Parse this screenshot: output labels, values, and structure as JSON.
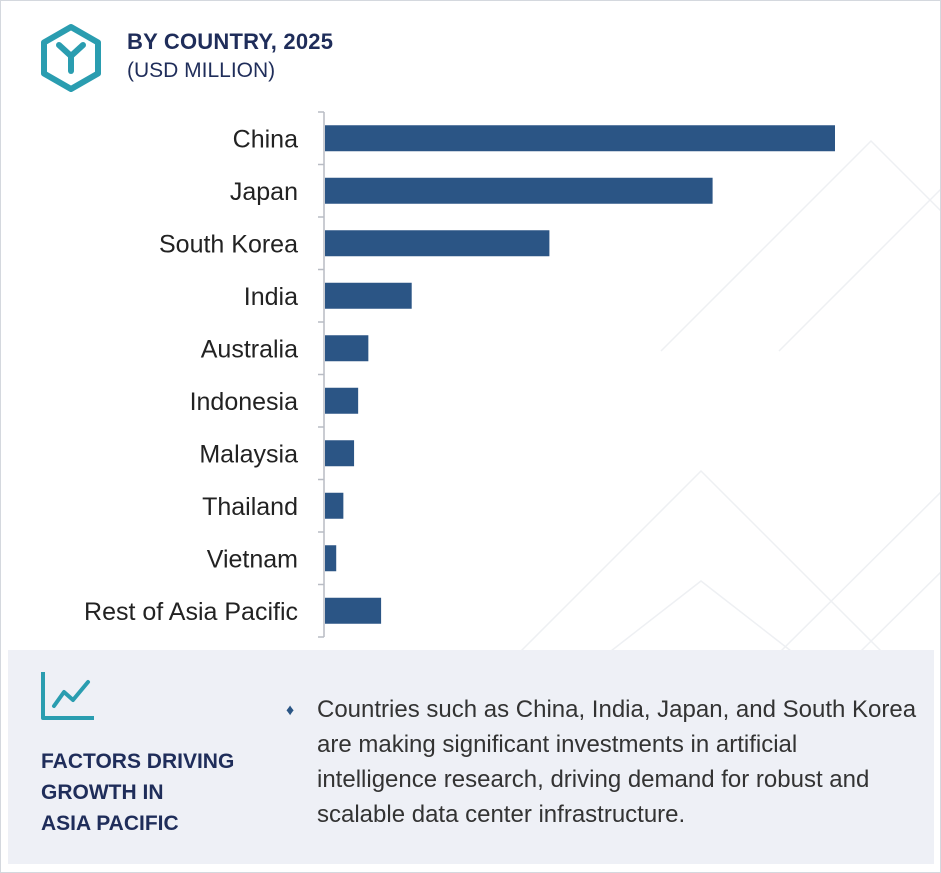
{
  "header": {
    "title": "BY COUNTRY, 2025",
    "subtitle": "(USD MILLION)",
    "logo_icon": "hexagon-y-logo-icon"
  },
  "colors": {
    "bar": "#2b5585",
    "title": "#1f2d5a",
    "accent_teal": "#2a9db0",
    "panel_bg": "#eef0f6"
  },
  "chart_data": {
    "type": "bar",
    "orientation": "horizontal",
    "title": "BY COUNTRY, 2025",
    "subtitle": "(USD MILLION)",
    "categories": [
      "China",
      "Japan",
      "South Korea",
      "India",
      "Australia",
      "Indonesia",
      "Malaysia",
      "Thailand",
      "Vietnam",
      "Rest of Asia Pacific"
    ],
    "values": [
      100,
      76,
      44,
      17,
      8.5,
      6.5,
      5.7,
      3.6,
      2.2,
      11
    ],
    "xlim": [
      0,
      100
    ],
    "value_axis_visible": false,
    "grid": false,
    "legend": "none"
  },
  "factors": {
    "icon": "trend-line-chart-icon",
    "title_lines": [
      "FACTORS DRIVING",
      "GROWTH IN",
      "ASIA PACIFIC"
    ],
    "bullet": "♦",
    "text": "Countries such as China, India, Japan, and South Korea are making significant investments in artificial intelligence research, driving demand for robust and scalable data center infrastructure."
  }
}
